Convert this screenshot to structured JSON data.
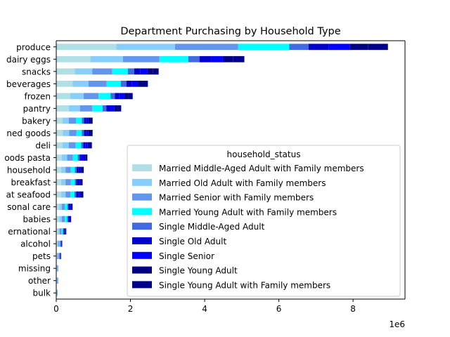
{
  "chart_data": {
    "type": "bar",
    "orientation": "horizontal",
    "stacked": true,
    "title": "Department Purchasing by Household Type",
    "xlabel": "",
    "ylabel": "",
    "x_offset_label": "1e6",
    "xlim": [
      0,
      9.4
    ],
    "xticks": [
      0,
      2,
      4,
      6,
      8
    ],
    "xtick_labels": [
      "0",
      "2",
      "4",
      "6",
      "8"
    ],
    "categories": [
      "produce",
      "dairy eggs",
      "snacks",
      "beverages",
      "frozen",
      "pantry",
      "bakery",
      "canned goods",
      "deli",
      "dry goods pasta",
      "household",
      "breakfast",
      "meat seafood",
      "personal care",
      "babies",
      "international",
      "alcohol",
      "pets",
      "missing",
      "other",
      "bulk"
    ],
    "category_labels_visible": [
      "produce",
      "dairy eggs",
      "snacks",
      "beverages",
      "frozen",
      "pantry",
      "bakery",
      "ned goods",
      "deli",
      "oods pasta",
      "household",
      "breakfast",
      "at seafood",
      "sonal care",
      "babies",
      "ernational",
      "alcohol",
      "pets",
      "missing",
      "other",
      "bulk"
    ],
    "legend": {
      "title": "household_status",
      "position": "lower-right"
    },
    "series": [
      {
        "name": "Married Middle-Aged Adult with Family members",
        "color": "#b0e0e6",
        "values": [
          1.62,
          0.92,
          0.5,
          0.44,
          0.38,
          0.34,
          0.17,
          0.18,
          0.17,
          0.15,
          0.13,
          0.13,
          0.13,
          0.08,
          0.08,
          0.05,
          0.03,
          0.02,
          0.01,
          0.01,
          0.01
        ]
      },
      {
        "name": "Married Old Adult with Family members",
        "color": "#87cefa",
        "values": [
          1.58,
          0.88,
          0.47,
          0.43,
          0.36,
          0.3,
          0.17,
          0.17,
          0.17,
          0.14,
          0.12,
          0.12,
          0.12,
          0.07,
          0.07,
          0.04,
          0.03,
          0.02,
          0.01,
          0.01,
          0.01
        ]
      },
      {
        "name": "Married Senior with Family members",
        "color": "#6495ed",
        "values": [
          1.7,
          0.98,
          0.54,
          0.49,
          0.4,
          0.33,
          0.19,
          0.19,
          0.18,
          0.16,
          0.14,
          0.14,
          0.13,
          0.08,
          0.08,
          0.05,
          0.03,
          0.02,
          0.01,
          0.01,
          0.01
        ]
      },
      {
        "name": "Married Young Adult with Family members",
        "color": "#00ffff",
        "values": [
          1.38,
          0.78,
          0.42,
          0.38,
          0.32,
          0.28,
          0.16,
          0.15,
          0.15,
          0.13,
          0.11,
          0.11,
          0.11,
          0.07,
          0.06,
          0.04,
          0.02,
          0.02,
          0.01,
          0.01,
          0.01
        ]
      },
      {
        "name": "Single Middle-Aged Adult",
        "color": "#4169e1",
        "values": [
          0.52,
          0.3,
          0.17,
          0.15,
          0.12,
          0.1,
          0.06,
          0.06,
          0.06,
          0.05,
          0.05,
          0.04,
          0.05,
          0.03,
          0.03,
          0.02,
          0.01,
          0.01,
          0.01,
          0.01,
          0.0
        ]
      },
      {
        "name": "Single Old Adult",
        "color": "#0000cd",
        "values": [
          0.55,
          0.31,
          0.17,
          0.15,
          0.12,
          0.1,
          0.06,
          0.06,
          0.06,
          0.05,
          0.05,
          0.04,
          0.05,
          0.03,
          0.02,
          0.02,
          0.01,
          0.01,
          0.0,
          0.0,
          0.0
        ]
      },
      {
        "name": "Single Senior",
        "color": "#0000ff",
        "values": [
          0.57,
          0.32,
          0.18,
          0.16,
          0.13,
          0.11,
          0.06,
          0.06,
          0.06,
          0.06,
          0.05,
          0.05,
          0.05,
          0.03,
          0.02,
          0.02,
          0.01,
          0.01,
          0.0,
          0.0,
          0.0
        ]
      },
      {
        "name": "Single Young Adult",
        "color": "#000080",
        "values": [
          0.49,
          0.28,
          0.15,
          0.13,
          0.11,
          0.09,
          0.05,
          0.05,
          0.05,
          0.05,
          0.04,
          0.04,
          0.04,
          0.02,
          0.02,
          0.01,
          0.01,
          0.01,
          0.0,
          0.0,
          0.0
        ]
      },
      {
        "name": "Single Young Adult with Family members",
        "color": "#00008b",
        "values": [
          0.53,
          0.3,
          0.16,
          0.14,
          0.12,
          0.1,
          0.06,
          0.06,
          0.06,
          0.05,
          0.05,
          0.04,
          0.05,
          0.03,
          0.02,
          0.02,
          0.01,
          0.01,
          0.0,
          0.0,
          0.0
        ]
      }
    ]
  }
}
